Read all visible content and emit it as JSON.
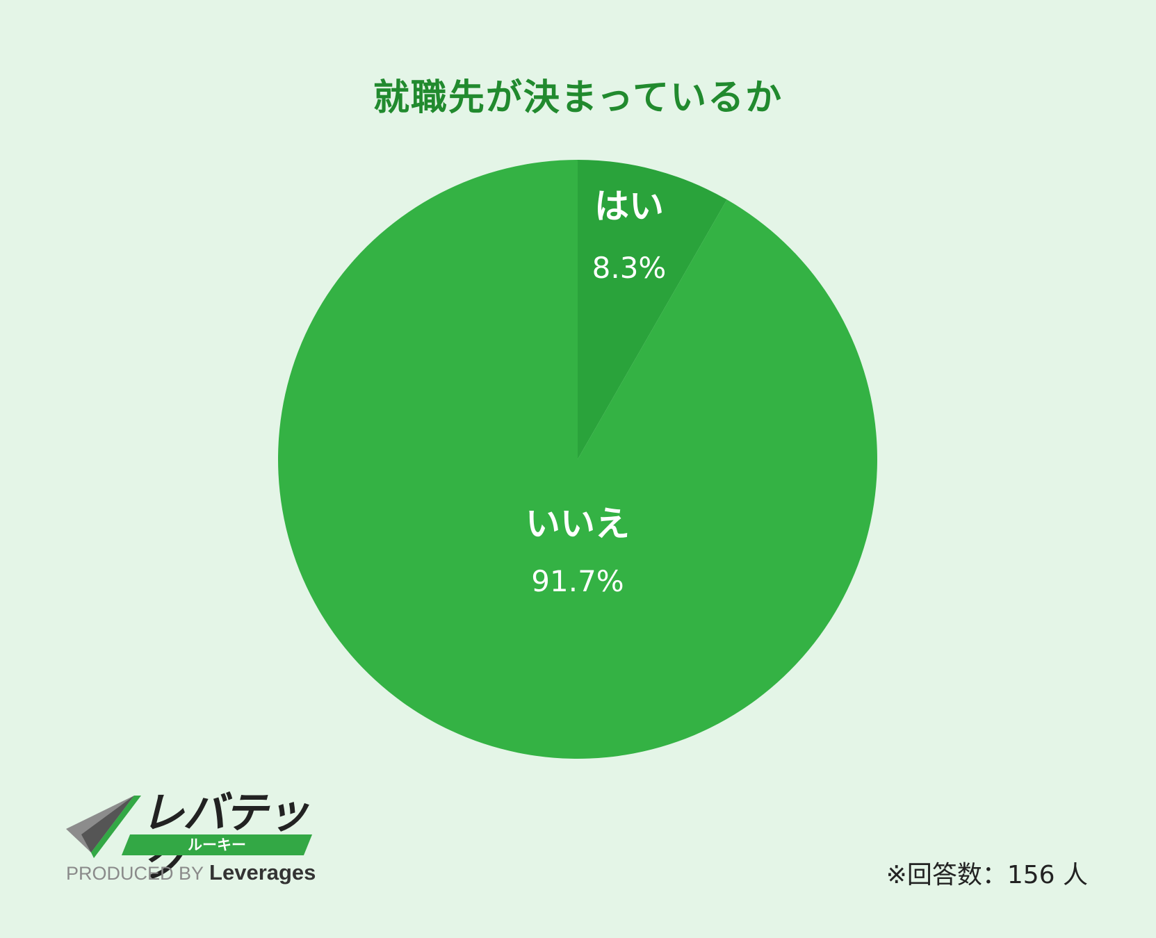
{
  "chart_data": {
    "type": "pie",
    "title": "就職先が決まっているか",
    "slices": [
      {
        "label": "はい",
        "value": 8.3,
        "display": "8.3%",
        "color": "#2aa33b"
      },
      {
        "label": "いいえ",
        "value": 91.7,
        "display": "91.7%",
        "color": "#34b244"
      }
    ],
    "start_angle_deg": 0,
    "direction": "clockwise"
  },
  "footer": {
    "note": "※回答数：156 人"
  },
  "logo": {
    "main": "レバテック",
    "sub": "ルーキー",
    "produced_by": "PRODUCED BY",
    "brand": "Leverages"
  }
}
